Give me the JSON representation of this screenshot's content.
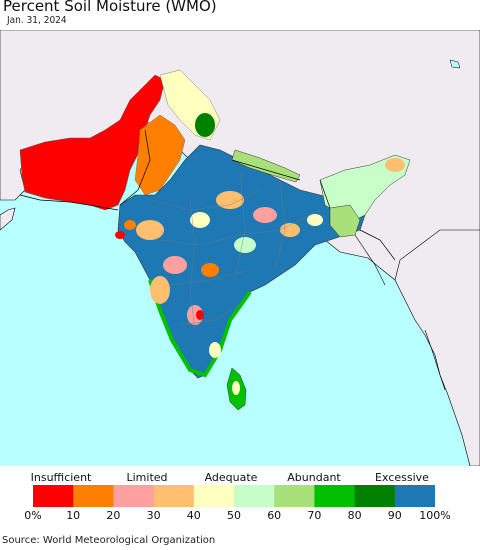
{
  "title": "Percent Soil Moisture (WMO)",
  "date": "Jan. 31, 2024",
  "source": "Source: World Meteorological Organization",
  "legend": {
    "categories": [
      "Insufficient",
      "Limited",
      "Adequate",
      "Abundant",
      "Excessive"
    ],
    "ticks": [
      "0%",
      "10",
      "20",
      "30",
      "40",
      "50",
      "60",
      "70",
      "80",
      "90",
      "100%"
    ],
    "colors": [
      "#ff0000",
      "#ff7f00",
      "#ffa0a0",
      "#ffbf6f",
      "#ffffc0",
      "#c8ffc8",
      "#a8e07a",
      "#00c000",
      "#008000",
      "#1e78b4"
    ]
  },
  "map_colors": {
    "ocean": "#b8ffff",
    "land_no_data": "#efebf0",
    "border": "#000000"
  }
}
